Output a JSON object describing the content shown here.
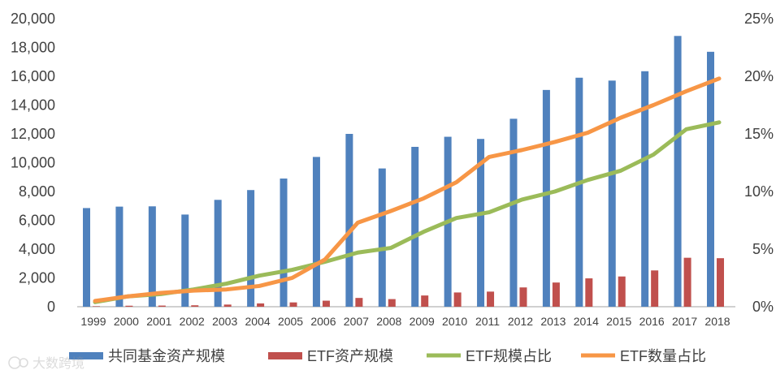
{
  "chart_data": {
    "type": "bar",
    "categories": [
      "1999",
      "2000",
      "2001",
      "2002",
      "2003",
      "2004",
      "2005",
      "2006",
      "2007",
      "2008",
      "2009",
      "2010",
      "2011",
      "2012",
      "2013",
      "2014",
      "2015",
      "2016",
      "2017",
      "2018"
    ],
    "y_left": {
      "ylim": [
        0,
        20000
      ],
      "ticks": [
        "0",
        "2,000",
        "4,000",
        "6,000",
        "8,000",
        "10,000",
        "12,000",
        "14,000",
        "16,000",
        "18,000",
        "20,000"
      ]
    },
    "y_right": {
      "ylim": [
        0,
        25
      ],
      "ticks": [
        "0%",
        "5%",
        "10%",
        "15%",
        "20%",
        "25%"
      ]
    },
    "series": [
      {
        "name": "共同基金资产规模",
        "kind": "bar",
        "axis": "left",
        "color": "#4F81BD",
        "values": [
          6850,
          6950,
          6970,
          6400,
          7420,
          8100,
          8900,
          10400,
          12000,
          9600,
          11100,
          11800,
          11650,
          13050,
          15050,
          15900,
          15700,
          16350,
          18800,
          17700
        ]
      },
      {
        "name": "ETF资产规模",
        "kind": "bar",
        "axis": "left",
        "color": "#C0504D",
        "values": [
          30,
          70,
          80,
          100,
          150,
          230,
          300,
          420,
          610,
          530,
          780,
          990,
          1050,
          1340,
          1680,
          1970,
          2100,
          2520,
          3400,
          3370
        ]
      },
      {
        "name": "ETF规模占比",
        "kind": "line",
        "axis": "right",
        "color": "#9BBB59",
        "values": [
          0.4,
          0.9,
          1.1,
          1.5,
          2.0,
          2.7,
          3.2,
          3.9,
          4.7,
          5.1,
          6.5,
          7.7,
          8.2,
          9.3,
          10.0,
          11.0,
          11.8,
          13.2,
          15.4,
          16.0
        ]
      },
      {
        "name": "ETF数量占比",
        "kind": "line",
        "axis": "right",
        "color": "#F79646",
        "values": [
          0.5,
          0.9,
          1.2,
          1.4,
          1.5,
          1.8,
          2.5,
          4.1,
          7.3,
          8.3,
          9.4,
          10.8,
          13.0,
          13.6,
          14.3,
          15.1,
          16.4,
          17.5,
          18.7,
          19.8
        ]
      }
    ],
    "legend_position": "bottom",
    "grid": false,
    "watermark": "大数跨境"
  }
}
